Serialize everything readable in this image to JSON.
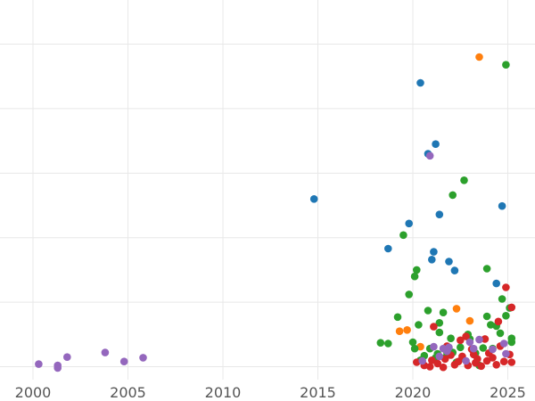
{
  "chart_data": {
    "type": "scatter",
    "title": "",
    "xlabel": "",
    "ylabel": "",
    "xlim": [
      1999.2,
      2026.3
    ],
    "ylim": [
      -0.2,
      5.5
    ],
    "xticks": [
      2000,
      2005,
      2010,
      2015,
      2020,
      2025
    ],
    "xtick_labels": [
      "2000",
      "2005",
      "2010",
      "2015",
      "2020",
      "2025"
    ],
    "yticks": [
      0,
      1,
      2,
      3,
      4,
      5
    ],
    "grid": true,
    "legend": "none",
    "series": [
      {
        "color": "#1f77b4",
        "points": [
          [
            2014.8,
            2.6
          ],
          [
            2018.7,
            1.83
          ],
          [
            2019.8,
            2.22
          ],
          [
            2020.4,
            4.4
          ],
          [
            2020.8,
            3.3
          ],
          [
            2021.0,
            1.66
          ],
          [
            2021.1,
            1.78
          ],
          [
            2021.2,
            3.45
          ],
          [
            2021.4,
            2.36
          ],
          [
            2021.9,
            1.63
          ],
          [
            2022.2,
            1.49
          ],
          [
            2024.4,
            1.29
          ],
          [
            2024.7,
            2.49
          ]
        ]
      },
      {
        "color": "#ff7f0e",
        "points": [
          [
            2019.3,
            0.55
          ],
          [
            2019.7,
            0.57
          ],
          [
            2020.4,
            0.31
          ],
          [
            2022.3,
            0.9
          ],
          [
            2023.0,
            0.71
          ],
          [
            2023.5,
            4.8
          ]
        ]
      },
      {
        "color": "#2ca02c",
        "points": [
          [
            2018.3,
            0.37
          ],
          [
            2018.7,
            0.36
          ],
          [
            2019.2,
            0.77
          ],
          [
            2019.5,
            2.04
          ],
          [
            2019.8,
            1.12
          ],
          [
            2020.0,
            0.38
          ],
          [
            2020.1,
            0.28
          ],
          [
            2020.2,
            1.5
          ],
          [
            2020.3,
            0.65
          ],
          [
            2020.4,
            0.1
          ],
          [
            2020.6,
            0.17
          ],
          [
            2020.8,
            0.87
          ],
          [
            2020.9,
            0.28
          ],
          [
            2021.2,
            0.14
          ],
          [
            2021.3,
            0.2
          ],
          [
            2021.4,
            0.53
          ],
          [
            2021.4,
            0.68
          ],
          [
            2021.6,
            0.84
          ],
          [
            2021.7,
            0.14
          ],
          [
            2021.8,
            0.22
          ],
          [
            2022.0,
            0.44
          ],
          [
            2022.1,
            0.22
          ],
          [
            2022.3,
            0.07
          ],
          [
            2022.5,
            0.3
          ],
          [
            2022.6,
            0.13
          ],
          [
            2022.7,
            2.89
          ],
          [
            2022.9,
            0.5
          ],
          [
            2023.0,
            0.43
          ],
          [
            2023.3,
            0.21
          ],
          [
            2023.5,
            0.02
          ],
          [
            2023.7,
            0.29
          ],
          [
            2023.9,
            0.78
          ],
          [
            2023.9,
            1.52
          ],
          [
            2024.1,
            0.65
          ],
          [
            2024.2,
            0.28
          ],
          [
            2024.4,
            0.63
          ],
          [
            2024.6,
            0.52
          ],
          [
            2024.7,
            1.05
          ],
          [
            2024.9,
            0.79
          ],
          [
            2024.9,
            4.68
          ],
          [
            2025.1,
            0.91
          ],
          [
            2025.2,
            0.38
          ],
          [
            2025.2,
            0.44
          ],
          [
            2022.1,
            2.66
          ],
          [
            2020.1,
            1.4
          ]
        ]
      },
      {
        "color": "#d62728",
        "points": [
          [
            2020.2,
            0.07
          ],
          [
            2020.6,
            0.02
          ],
          [
            2020.9,
            0.0
          ],
          [
            2021.0,
            0.1
          ],
          [
            2021.1,
            0.62
          ],
          [
            2021.3,
            0.05
          ],
          [
            2021.6,
            -0.01
          ],
          [
            2021.7,
            0.12
          ],
          [
            2022.0,
            0.18
          ],
          [
            2022.2,
            0.03
          ],
          [
            2022.4,
            0.08
          ],
          [
            2022.6,
            0.16
          ],
          [
            2022.8,
            0.47
          ],
          [
            2022.9,
            0.02
          ],
          [
            2023.1,
            0.27
          ],
          [
            2023.3,
            0.06
          ],
          [
            2023.4,
            0.12
          ],
          [
            2023.6,
            0.01
          ],
          [
            2023.8,
            0.43
          ],
          [
            2023.9,
            0.09
          ],
          [
            2024.0,
            0.21
          ],
          [
            2024.2,
            0.14
          ],
          [
            2024.4,
            0.03
          ],
          [
            2024.6,
            0.32
          ],
          [
            2024.8,
            0.08
          ],
          [
            2024.9,
            1.23
          ],
          [
            2025.1,
            0.19
          ],
          [
            2025.2,
            0.07
          ],
          [
            2025.2,
            0.92
          ],
          [
            2021.8,
            0.32
          ],
          [
            2022.5,
            0.41
          ],
          [
            2023.2,
            0.19
          ],
          [
            2024.5,
            0.7
          ]
        ]
      },
      {
        "color": "#9467bd",
        "points": [
          [
            2000.3,
            0.04
          ],
          [
            2001.3,
            0.02
          ],
          [
            2001.3,
            -0.02
          ],
          [
            2001.8,
            0.15
          ],
          [
            2003.8,
            0.22
          ],
          [
            2004.8,
            0.08
          ],
          [
            2005.8,
            0.14
          ],
          [
            2020.5,
            0.09
          ],
          [
            2020.9,
            3.27
          ],
          [
            2021.1,
            0.31
          ],
          [
            2021.4,
            0.16
          ],
          [
            2021.6,
            0.28
          ],
          [
            2021.9,
            0.3
          ],
          [
            2022.8,
            0.09
          ],
          [
            2023.0,
            0.38
          ],
          [
            2023.5,
            0.42
          ],
          [
            2024.2,
            0.27
          ],
          [
            2024.8,
            0.36
          ],
          [
            2024.9,
            0.2
          ],
          [
            2021.8,
            0.24
          ],
          [
            2023.2,
            0.28
          ]
        ]
      }
    ]
  }
}
